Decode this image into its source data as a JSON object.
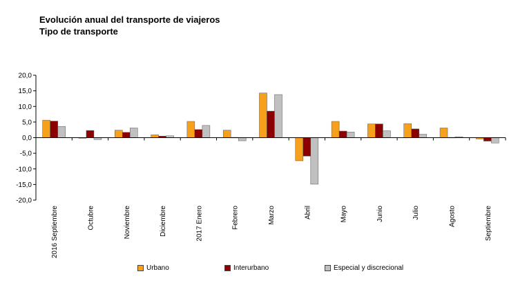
{
  "chart_data": {
    "type": "bar",
    "title": "Evolución anual del transporte de viajeros",
    "subtitle": "Tipo de transporte",
    "categories": [
      "2016 Septiembre",
      "Octubre",
      "Noviembre",
      "Diciembre",
      "2017 Enero",
      "Febrero",
      "Marzo",
      "Abril",
      "Mayo",
      "Junio",
      "Julio",
      "Agosto",
      "Septiembre"
    ],
    "series": [
      {
        "name": "Urbano",
        "color": "#f7a01c",
        "values": [
          5.6,
          -0.1,
          2.4,
          0.9,
          5.2,
          2.4,
          14.3,
          -7.4,
          5.2,
          4.4,
          4.5,
          3.1,
          -0.4
        ]
      },
      {
        "name": "Interurbano",
        "color": "#8b0000",
        "values": [
          5.3,
          2.3,
          1.7,
          0.5,
          2.6,
          0.1,
          8.5,
          -5.9,
          2.1,
          4.4,
          2.8,
          0.1,
          -1.1
        ]
      },
      {
        "name": "Especial y discrecional",
        "color": "#c0c0c0",
        "values": [
          3.6,
          -0.6,
          3.1,
          0.6,
          3.9,
          -1.0,
          13.8,
          -14.9,
          1.8,
          2.2,
          1.1,
          0.3,
          -1.7
        ]
      }
    ],
    "ylim": [
      -20,
      20
    ],
    "yticks": [
      -20,
      -15,
      -10,
      -5,
      0,
      5,
      10,
      15,
      20
    ],
    "ytick_labels": [
      "-20,0",
      "-15,0",
      "-10,0",
      "-5,0",
      "0,0",
      "5,0",
      "10,0",
      "15,0",
      "20,0"
    ],
    "grid": false,
    "legend_position": "bottom"
  }
}
